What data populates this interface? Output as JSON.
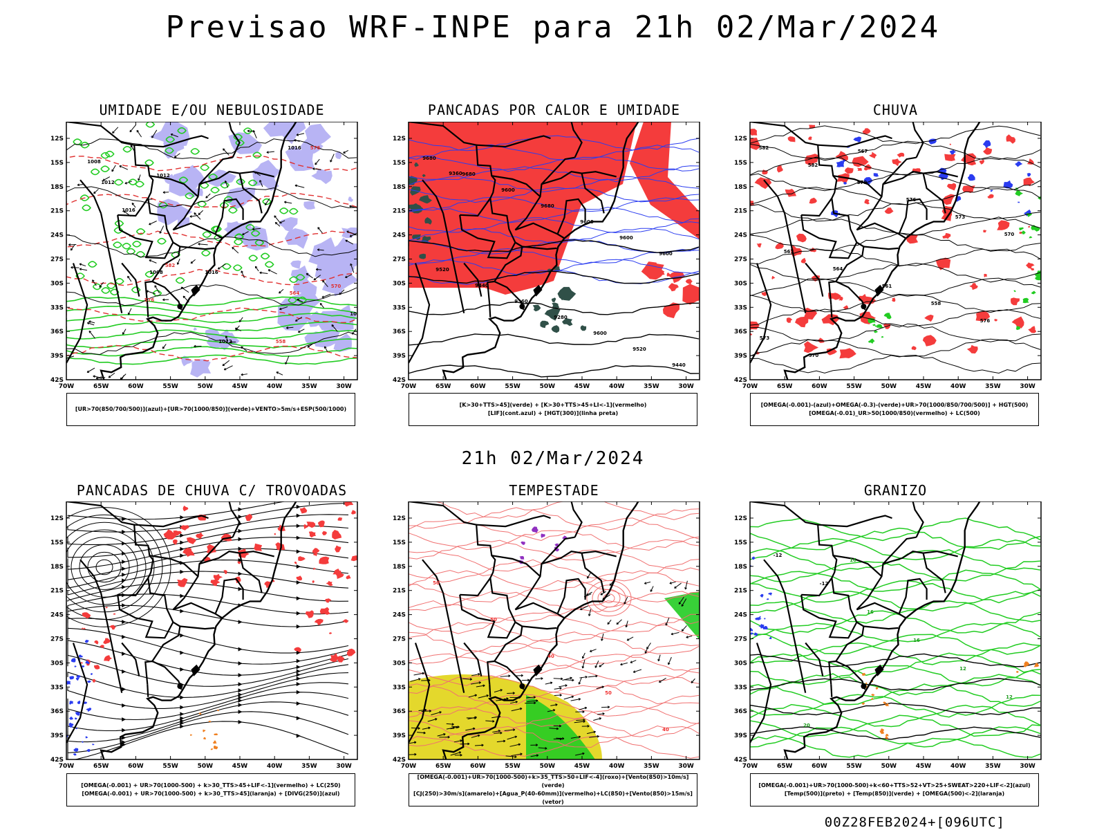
{
  "title": "Previsao WRF-INPE  para 21h 02/Mar/2024",
  "subtitle": "21h 02/Mar/2024",
  "footer": "00Z28FEB2024+[096UTC]",
  "lat_ticks": [
    "12S",
    "15S",
    "18S",
    "21S",
    "24S",
    "27S",
    "30S",
    "33S",
    "36S",
    "39S",
    "42S"
  ],
  "lon_ticks": [
    "70W",
    "65W",
    "60W",
    "55W",
    "50W",
    "45W",
    "40W",
    "35W",
    "30W"
  ],
  "colors": {
    "red": "#f43c3c",
    "green": "#22cc22",
    "blue": "#2a3cf0",
    "lavender": "#b8b4f4",
    "yellow": "#e4d82c",
    "orange": "#f08020",
    "darkteal": "#305048",
    "purple": "#9030c0"
  },
  "panels": [
    {
      "title": "UMIDADE E/OU NEBULOSIDADE",
      "legend": [
        "[UR>70(850/700/500)](azul)+[UR>70(1000/850)](verde)+VENTO>5m/s+ESP(500/1000)"
      ],
      "contour_labels": [
        "1008",
        "1012",
        "1016",
        "1012",
        "1008",
        "1016",
        "1012",
        "576",
        "582",
        "576",
        "570",
        "564",
        "558",
        "1012",
        "1016"
      ]
    },
    {
      "title": "PANCADAS POR CALOR E UMIDADE",
      "legend": [
        "[K>30+TTS>45](verde) + [K>30+TTS>45+LI<-1](vermelho)",
        "[LIF](cont.azul) + [HGT(300)](linha preta)"
      ],
      "contour_labels": [
        "9680",
        "9680",
        "9600",
        "9680",
        "9600",
        "9600",
        "9600",
        "9520",
        "9440",
        "9360",
        "9280",
        "9600",
        "9520",
        "9440",
        "9360"
      ]
    },
    {
      "title": "CHUVA",
      "legend": [
        "[OMEGA(-0.001)-(azul)+OMEGA(-0.3)-(verde)+UR>70(1000/850/700/500)] + HGT(500)",
        "[OMEGA(-0.01)_UR>50(1000/850)(vermelho) + LC(500)"
      ],
      "contour_labels": [
        "582",
        "582",
        "579",
        "576",
        "573",
        "570",
        "567",
        "564",
        "561",
        "558",
        "576",
        "573",
        "570",
        "567"
      ]
    },
    {
      "title": "PANCADAS DE CHUVA C/ TROVOADAS",
      "legend": [
        "[OMEGA(-0.001) + UR>70(1000-500) + k>30_TTS>45+LIF<-1](vermelho) + LC(250)",
        "[OMEGA(-0.001) + UR>70(1000-500) + k>30_TTS>45](laranja) + [DIVG(250)](azul)"
      ],
      "contour_labels": []
    },
    {
      "title": "TEMPESTADE",
      "legend": [
        "[OMEGA(-0.001)+UR>70(1000-500)+k>35_TTS>50+LIF<-4](roxo)+[Vento(850)>10m/s](verde)",
        "[CJ(250)>30m/s](amarelo)+[Agua_P(40-60mm)](vermelho)+LC(850)+[Vento(850)>15m/s](vetor)"
      ],
      "contour_labels": [
        "50",
        "50",
        "40",
        "50",
        "40"
      ]
    },
    {
      "title": "GRANIZO",
      "legend": [
        "[OMEGA(-0.001)+UR>70(1000-500)+k<60+TTS>52+VT>25+SWEAT>220+LIF<-2](azul)",
        "[Temp(500)](preto) + [Temp(850)](verde) + [OMEGA(500)<-2](laranja)"
      ],
      "contour_labels": [
        "-12",
        "-12",
        "16",
        "16",
        "12",
        "12",
        "20",
        "16"
      ]
    }
  ]
}
